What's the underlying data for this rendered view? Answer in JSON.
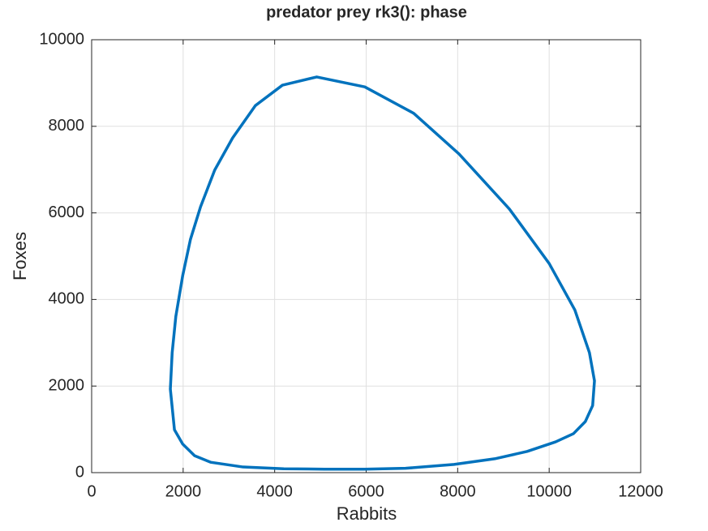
{
  "chart_data": {
    "type": "line",
    "title": "predator prey rk3(): phase",
    "xlabel": "Rabbits",
    "ylabel": "Foxes",
    "color": "#0072bd",
    "grid": true,
    "xlim": [
      0,
      12000
    ],
    "ylim": [
      0,
      10000
    ],
    "xticks": [
      0,
      2000,
      4000,
      6000,
      8000,
      10000,
      12000
    ],
    "yticks": [
      0,
      2000,
      4000,
      6000,
      8000,
      10000
    ],
    "x": [
      1720,
      1810,
      1990,
      2250,
      2600,
      3310,
      4200,
      5090,
      5970,
      6860,
      7920,
      8810,
      9520,
      10140,
      10530,
      10790,
      10950,
      10990,
      10880,
      10560,
      10000,
      9130,
      8030,
      7040,
      5970,
      4920,
      4170,
      3580,
      3080,
      2690,
      2380,
      2160,
      1990,
      1840,
      1760,
      1720
    ],
    "y": [
      1930,
      990,
      660,
      390,
      240,
      130,
      90,
      80,
      80,
      100,
      190,
      320,
      490,
      710,
      900,
      1180,
      1550,
      2120,
      2770,
      3760,
      4830,
      6090,
      7360,
      8300,
      8910,
      9140,
      8950,
      8480,
      7730,
      6990,
      6140,
      5390,
      4550,
      3610,
      2770,
      1930
    ]
  }
}
